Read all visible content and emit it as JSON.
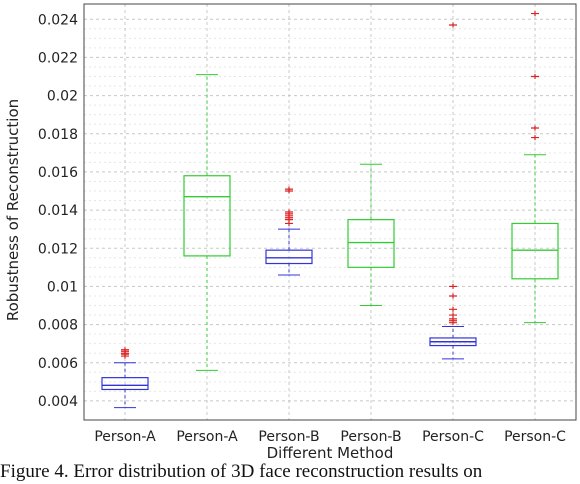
{
  "chart_data": {
    "type": "box",
    "title": "",
    "xlabel": "Different Method",
    "ylabel": "Robustness of Reconstruction",
    "ylim": [
      0.003,
      0.0248
    ],
    "yticks": [
      "0.004",
      "0.006",
      "0.008",
      "0.01",
      "0.012",
      "0.014",
      "0.016",
      "0.018",
      "0.02",
      "0.022",
      "0.024"
    ],
    "ytick_values": [
      0.004,
      0.006,
      0.008,
      0.01,
      0.012,
      0.014,
      0.016,
      0.018,
      0.02,
      0.022,
      0.024
    ],
    "grid": true,
    "categories": [
      "Person-A",
      "Person-A",
      "Person-B",
      "Person-B",
      "Person-C",
      "Person-C"
    ],
    "boxes": [
      {
        "label": "Person-A",
        "color": "#3333dd",
        "lower_whisker": 0.00365,
        "q1": 0.0046,
        "median": 0.00482,
        "q3": 0.00522,
        "upper_whisker": 0.006,
        "outliers": [
          0.00635,
          0.00645,
          0.0065,
          0.0066,
          0.00668
        ]
      },
      {
        "label": "Person-A",
        "color": "#33cc33",
        "lower_whisker": 0.0056,
        "q1": 0.0116,
        "median": 0.0147,
        "q3": 0.0158,
        "upper_whisker": 0.0211,
        "outliers": []
      },
      {
        "label": "Person-B",
        "color": "#3333dd",
        "lower_whisker": 0.0106,
        "q1": 0.0112,
        "median": 0.0115,
        "q3": 0.0119,
        "upper_whisker": 0.013,
        "outliers": [
          0.0133,
          0.0135,
          0.0136,
          0.0137,
          0.0138,
          0.0139,
          0.015,
          0.0151
        ]
      },
      {
        "label": "Person-B",
        "color": "#33cc33",
        "lower_whisker": 0.009,
        "q1": 0.011,
        "median": 0.0123,
        "q3": 0.0135,
        "upper_whisker": 0.0164,
        "outliers": []
      },
      {
        "label": "Person-C",
        "color": "#3333dd",
        "lower_whisker": 0.0062,
        "q1": 0.0069,
        "median": 0.0071,
        "q3": 0.0073,
        "upper_whisker": 0.0079,
        "outliers": [
          0.0081,
          0.0082,
          0.0083,
          0.0085,
          0.0088,
          0.0095,
          0.01,
          0.0237
        ]
      },
      {
        "label": "Person-C",
        "color": "#33cc33",
        "lower_whisker": 0.0081,
        "q1": 0.0104,
        "median": 0.0119,
        "q3": 0.0133,
        "upper_whisker": 0.0169,
        "outliers": [
          0.0178,
          0.0183,
          0.021,
          0.0243
        ]
      }
    ],
    "outlier_color": "#dd2222",
    "outlier_marker": "+"
  },
  "caption": {
    "text": "Figure 4.   Error distribution of 3D face reconstruction results on"
  }
}
